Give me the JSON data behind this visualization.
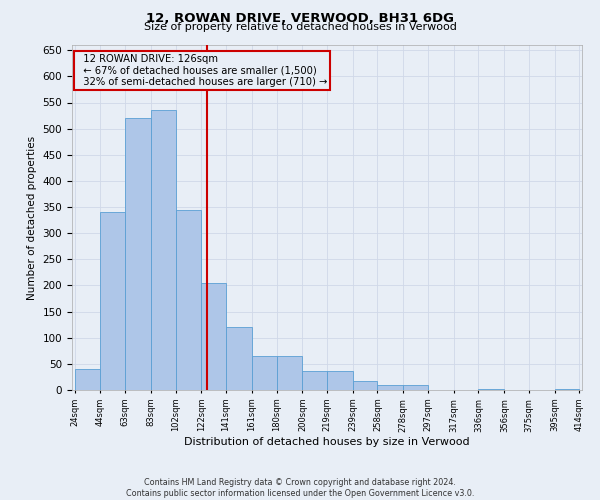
{
  "title1": "12, ROWAN DRIVE, VERWOOD, BH31 6DG",
  "title2": "Size of property relative to detached houses in Verwood",
  "xlabel": "Distribution of detached houses by size in Verwood",
  "ylabel": "Number of detached properties",
  "footer1": "Contains HM Land Registry data © Crown copyright and database right 2024.",
  "footer2": "Contains public sector information licensed under the Open Government Licence v3.0.",
  "annotation_line1": "12 ROWAN DRIVE: 126sqm",
  "annotation_line2": "← 67% of detached houses are smaller (1,500)",
  "annotation_line3": "32% of semi-detached houses are larger (710) →",
  "property_size": 126,
  "bin_edges": [
    24,
    44,
    63,
    83,
    102,
    122,
    141,
    161,
    180,
    200,
    219,
    239,
    258,
    278,
    297,
    317,
    336,
    356,
    375,
    395,
    414
  ],
  "bar_heights": [
    40,
    340,
    520,
    535,
    345,
    205,
    120,
    65,
    65,
    37,
    37,
    17,
    10,
    10,
    0,
    0,
    2,
    0,
    0,
    2
  ],
  "bar_color": "#aec6e8",
  "bar_edge_color": "#5a9fd4",
  "vline_color": "#cc0000",
  "vline_x": 126,
  "annotation_box_color": "#cc0000",
  "grid_color": "#d0d8e8",
  "background_color": "#e8eef6",
  "ylim": [
    0,
    660
  ],
  "yticks": [
    0,
    50,
    100,
    150,
    200,
    250,
    300,
    350,
    400,
    450,
    500,
    550,
    600,
    650
  ]
}
